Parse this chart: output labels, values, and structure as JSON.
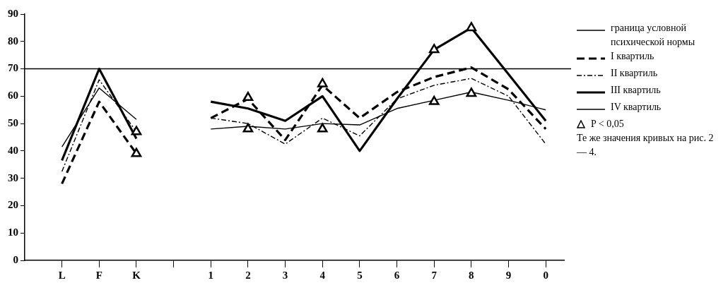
{
  "chart_data": {
    "type": "line",
    "categories": [
      "L",
      "F",
      "K",
      null,
      "1",
      "2",
      "3",
      "4",
      "5",
      "6",
      "7",
      "8",
      "9",
      "0"
    ],
    "ylim": [
      0,
      90
    ],
    "yticks": [
      0,
      10,
      20,
      30,
      40,
      50,
      60,
      70,
      80,
      90
    ],
    "marker": "none",
    "legend": "right",
    "ref_lines": [
      {
        "axis": "y",
        "value": 70,
        "label": "граница условной психической нормы",
        "color": "#000000",
        "line_style": "solid"
      }
    ],
    "series": [
      {
        "name": "I квартиль",
        "color": "#000000",
        "line_style": "dashed",
        "values": [
          28,
          58,
          39,
          null,
          52,
          59,
          44,
          64,
          52,
          61.5,
          67,
          70.5,
          62.5,
          48
        ]
      },
      {
        "name": "II квартиль",
        "color": "#000000",
        "line_style": "dotted",
        "values": [
          32.5,
          66,
          47,
          null,
          52,
          50,
          42.5,
          52,
          45.5,
          59,
          64,
          66.5,
          60,
          42.5
        ]
      },
      {
        "name": "III квартиль",
        "color": "#000000",
        "line_style": "solid",
        "values": [
          36.5,
          70,
          44.5,
          null,
          58,
          55.5,
          51,
          60,
          40,
          59,
          77,
          85,
          68,
          51
        ]
      },
      {
        "name": "IV квартиль",
        "color": "#000000",
        "line_style": "solid",
        "values": [
          41.5,
          63,
          51.5,
          null,
          48,
          49,
          48,
          50,
          49.5,
          55.5,
          58.5,
          61.5,
          58.5,
          55
        ]
      },
      {
        "name": "P < 0,05",
        "type": "scatter",
        "marker": "triangle",
        "color": "#000000",
        "x": [
          "K",
          "K",
          "2",
          "2",
          "4",
          "4",
          "7",
          "7",
          "8",
          "8"
        ],
        "values": [
          47,
          39,
          59.5,
          48,
          64.5,
          48,
          77,
          58,
          85,
          61
        ]
      }
    ],
    "annotations": [
      "Те же значения кривых на рис. 2— 4."
    ]
  }
}
